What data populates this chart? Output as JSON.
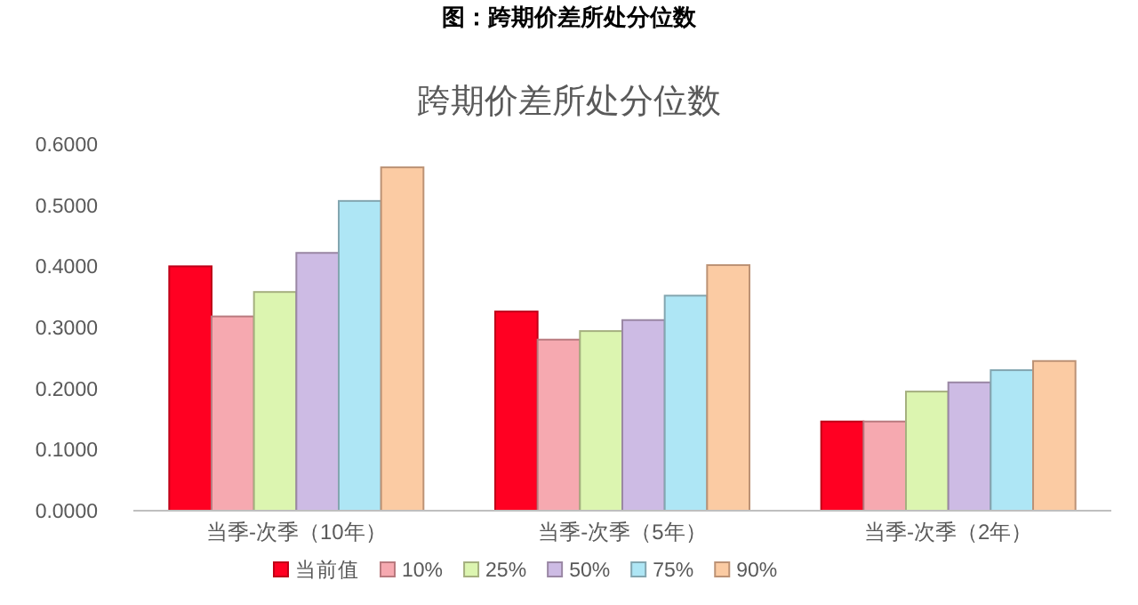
{
  "chart_data": {
    "type": "bar",
    "title": "跨期价差所处分位数",
    "annotations": [
      "图：跨期价差所处分位数"
    ],
    "categories": [
      "当季-次季（10年）",
      "当季-次季（5年）",
      "当季-次季（2年）"
    ],
    "series": [
      {
        "name": "当前值",
        "color": "#ff0022",
        "values": [
          0.4,
          0.326,
          0.146
        ]
      },
      {
        "name": "10%",
        "color": "#f6a9b0",
        "values": [
          0.318,
          0.28,
          0.146
        ]
      },
      {
        "name": "25%",
        "color": "#dcf5b0",
        "values": [
          0.358,
          0.294,
          0.195
        ]
      },
      {
        "name": "50%",
        "color": "#cdbbe4",
        "values": [
          0.422,
          0.312,
          0.21
        ]
      },
      {
        "name": "75%",
        "color": "#aee6f5",
        "values": [
          0.507,
          0.352,
          0.23
        ]
      },
      {
        "name": "90%",
        "color": "#fbcba3",
        "values": [
          0.562,
          0.402,
          0.245
        ]
      }
    ],
    "ylim": [
      0,
      0.6
    ],
    "yticks": [
      {
        "value": 0,
        "label": "0.0000"
      },
      {
        "value": 0.1,
        "label": "0.1000"
      },
      {
        "value": 0.2,
        "label": "0.2000"
      },
      {
        "value": 0.3,
        "label": "0.3000"
      },
      {
        "value": 0.4,
        "label": "0.4000"
      },
      {
        "value": 0.5,
        "label": "0.5000"
      },
      {
        "value": 0.6,
        "label": "0.6000"
      }
    ],
    "grid": false,
    "legend": "bottom"
  }
}
